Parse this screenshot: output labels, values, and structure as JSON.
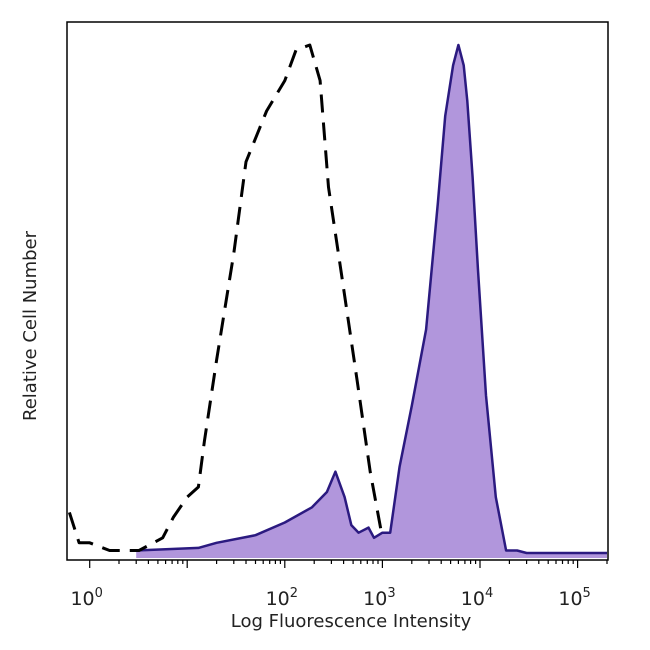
{
  "chart_data": {
    "type": "area",
    "title": "",
    "xlabel": "Log Fluorescence Intensity",
    "ylabel": "Relative Cell Number",
    "x_scale": "log",
    "xlim": [
      0.6,
      200000
    ],
    "ylim": [
      0,
      100
    ],
    "x_ticks": [
      {
        "base": "10",
        "exp": "0",
        "value": 1
      },
      {
        "base": "10",
        "exp": "2",
        "value": 100
      },
      {
        "base": "10",
        "exp": "3",
        "value": 1000
      },
      {
        "base": "10",
        "exp": "4",
        "value": 10000
      },
      {
        "base": "10",
        "exp": "5",
        "value": 100000
      }
    ],
    "grid": false,
    "legend": "none",
    "series": [
      {
        "style": "dashed",
        "color": "#000000",
        "filled": false,
        "x": [
          0.62,
          0.78,
          1.0,
          1.6,
          3.2,
          5.6,
          7.2,
          10,
          13,
          15,
          20,
          30,
          40,
          65,
          100,
          130,
          180,
          230,
          280,
          380,
          550,
          750,
          1000
        ],
        "y": [
          8,
          2,
          2,
          0.5,
          0.5,
          3,
          7,
          11,
          13,
          22,
          38,
          59,
          77,
          87,
          93,
          99,
          100,
          93,
          72,
          55,
          34,
          16,
          3
        ]
      },
      {
        "style": "solid",
        "color": "#2b1a80",
        "fill": "#b196dc",
        "filled": true,
        "x": [
          3.0,
          13,
          20,
          50,
          100,
          190,
          270,
          330,
          410,
          480,
          570,
          720,
          820,
          1000,
          1200,
          1500,
          2000,
          2800,
          3700,
          4400,
          5300,
          6000,
          6800,
          7400,
          8400,
          9500,
          11500,
          14500,
          18500,
          24000,
          30000,
          200000
        ],
        "y": [
          0.5,
          1,
          2,
          3.5,
          6,
          9,
          12,
          16,
          11,
          5.5,
          4,
          5,
          3,
          4,
          4,
          17,
          29,
          44,
          69,
          86,
          96,
          100,
          96,
          89,
          74,
          56,
          31,
          11,
          0.5,
          0.5,
          0,
          0
        ]
      }
    ]
  }
}
